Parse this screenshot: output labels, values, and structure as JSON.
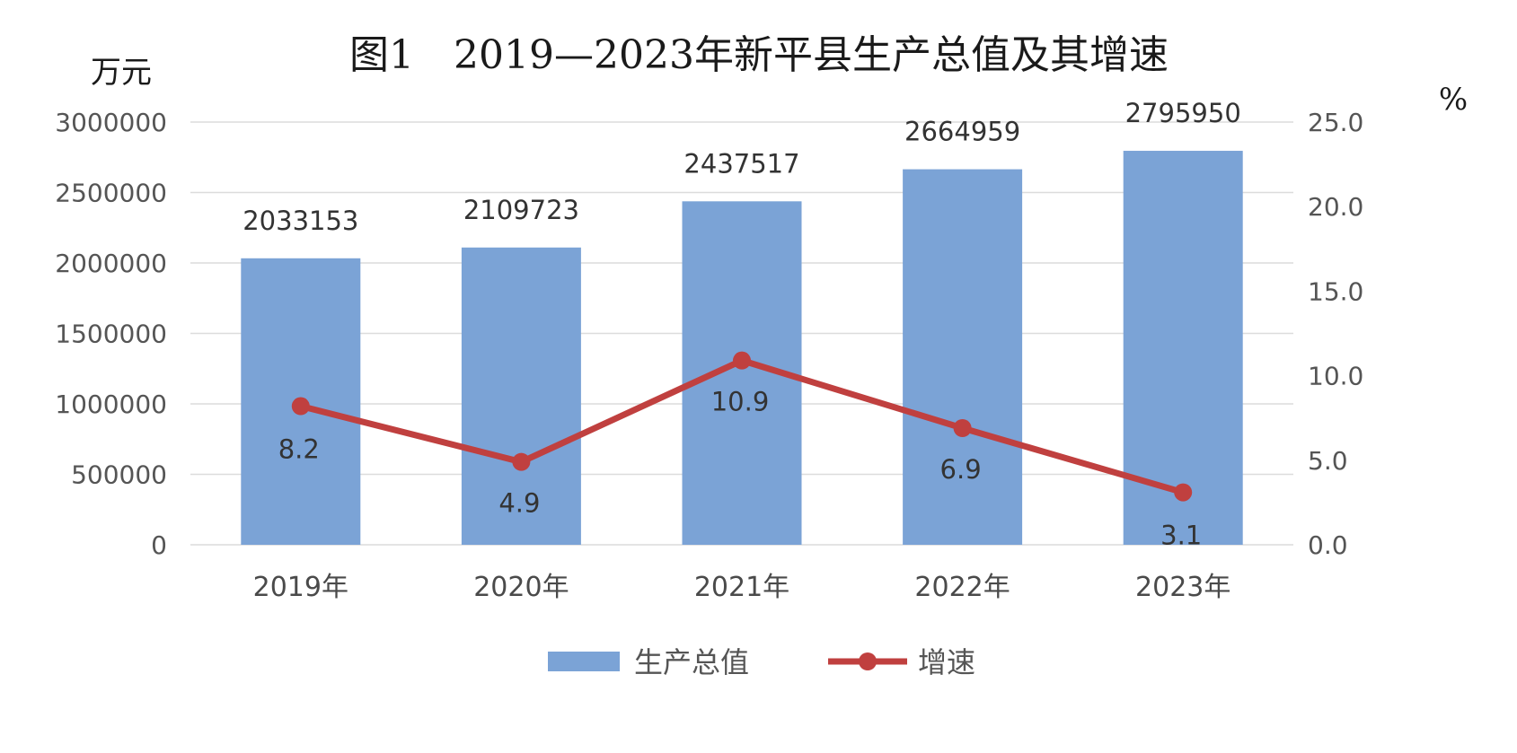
{
  "chart_data": {
    "type": "bar",
    "title": "图1　2019—2023年新平县生产总值及其增速",
    "categories": [
      "2019年",
      "2020年",
      "2021年",
      "2022年",
      "2023年"
    ],
    "series": [
      {
        "name": "生产总值",
        "type": "bar",
        "axis": "left",
        "values": [
          2033153,
          2109723,
          2437517,
          2664959,
          2795950
        ],
        "labels": [
          "2033153",
          "2109723",
          "2437517",
          "2664959",
          "2795950"
        ]
      },
      {
        "name": "增速",
        "type": "line",
        "axis": "right",
        "values": [
          8.2,
          4.9,
          10.9,
          6.9,
          3.1
        ],
        "labels": [
          "8.2",
          "4.9",
          "10.9",
          "6.9",
          "3.1"
        ]
      }
    ],
    "ylabel": "万元",
    "ylabel_right": "%",
    "ylim": [
      0,
      3000000
    ],
    "ylim_right": [
      0,
      25
    ],
    "yticks": [
      "0",
      "500000",
      "1000000",
      "1500000",
      "2000000",
      "2500000",
      "3000000"
    ],
    "yticks_right": [
      "0.0",
      "5.0",
      "10.0",
      "15.0",
      "20.0",
      "25.0"
    ],
    "grid": true,
    "legend_position": "bottom",
    "colors": {
      "bar": "#7ba3d6",
      "line": "#c0403f"
    }
  }
}
